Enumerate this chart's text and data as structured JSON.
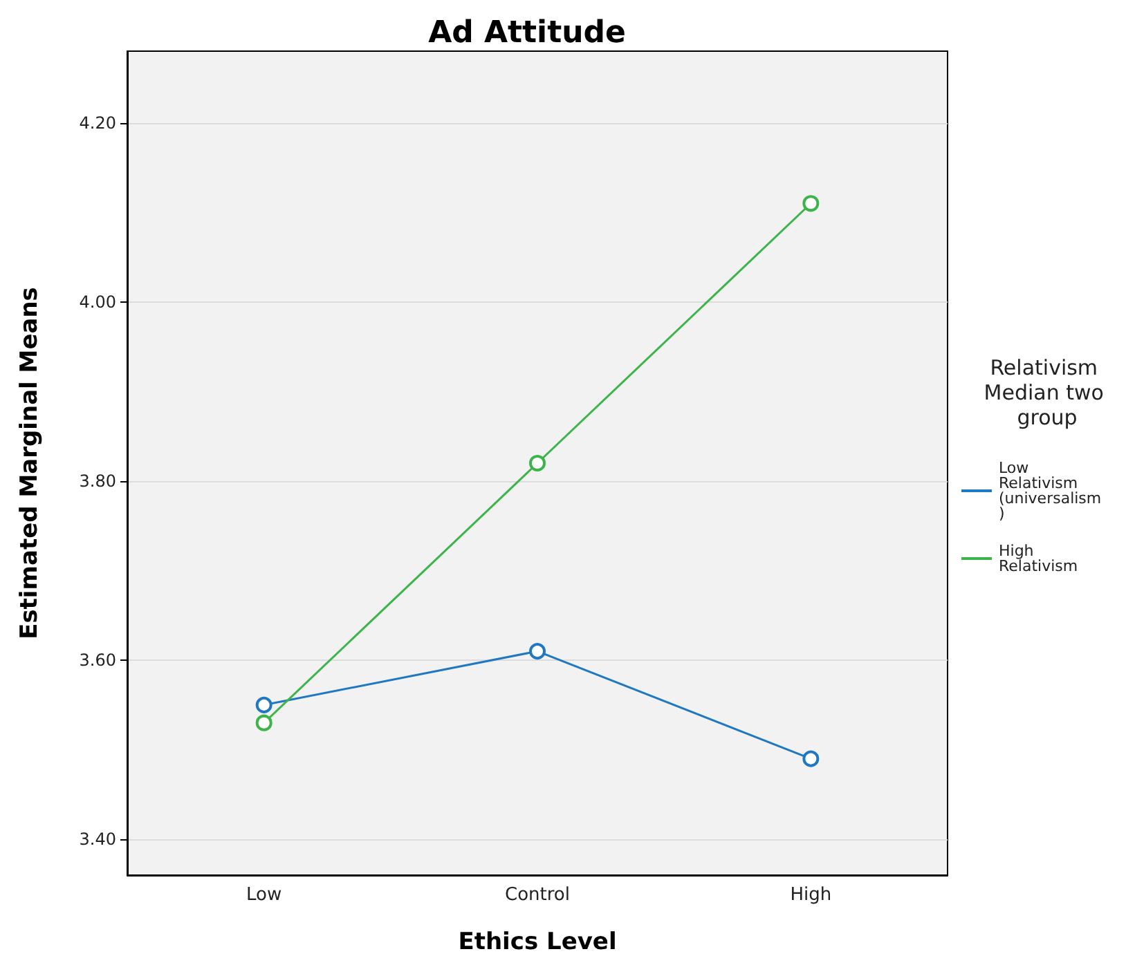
{
  "chart_data": {
    "type": "line",
    "title": "Ad Attitude",
    "xlabel": "Ethics Level",
    "ylabel": "Estimated Marginal Means",
    "legend_title": "Relativism Median two group",
    "categories": [
      "Low",
      "Control",
      "High"
    ],
    "series": [
      {
        "name": "Low Relativism (universalism)",
        "color": "#1f78c1",
        "values": [
          3.55,
          3.61,
          3.49
        ]
      },
      {
        "name": "High Relativism",
        "color": "#3cb44a",
        "values": [
          3.53,
          3.82,
          4.11
        ]
      }
    ],
    "ylim": [
      3.36,
      4.28
    ],
    "yticks": [
      {
        "value": 3.4,
        "label": "3.40"
      },
      {
        "value": 3.6,
        "label": "3.60"
      },
      {
        "value": 3.8,
        "label": "3.80"
      },
      {
        "value": 4.0,
        "label": "4.00"
      },
      {
        "value": 4.2,
        "label": "4.20"
      }
    ],
    "grid": "y",
    "legend": "right",
    "marker": "circle",
    "line_style": "solid"
  }
}
